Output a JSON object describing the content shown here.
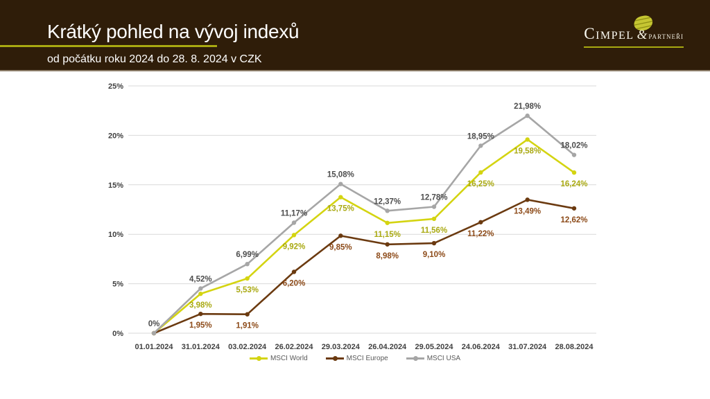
{
  "header": {
    "title": "Krátký pohled na vývoj indexů",
    "subtitle": "od počátku roku 2024 do 28. 8. 2024 v CZK",
    "background_color": "#2f1d09",
    "accent_color": "#a9a911",
    "text_color": "#ffffff",
    "logo": {
      "name": "Cimpel",
      "ampersand": "&",
      "suffix": "partneři"
    }
  },
  "chart_data": {
    "type": "line",
    "title": "",
    "x_labels": [
      "01.01.2024",
      "31.01.2024",
      "03.02.2024",
      "26.02.2024",
      "29.03.2024",
      "26.04.2024",
      "29.05.2024",
      "24.06.2024",
      "31.07.2024",
      "28.08.2024"
    ],
    "y_ticks": [
      "0%",
      "5%",
      "10%",
      "15%",
      "20%",
      "25%"
    ],
    "ylim": [
      0,
      25
    ],
    "grid": "horizontal",
    "gridline_color": "#d9d9d9",
    "axis_text_color": "#404040",
    "legend_position": "bottom",
    "legend_text_color": "#595959",
    "series": [
      {
        "name": "MSCI World",
        "color": "#d4d411",
        "label_color": "#a9a911",
        "label_side": "below",
        "values": [
          0,
          3.98,
          5.53,
          9.92,
          13.75,
          11.15,
          11.56,
          16.25,
          19.58,
          16.24
        ],
        "labels": [
          "",
          "3,98%",
          "5,53%",
          "9,92%",
          "13,75%",
          "11,15%",
          "11,56%",
          "16,25%",
          "19,58%",
          "16,24%"
        ]
      },
      {
        "name": "MSCI Europe",
        "color": "#6b3a10",
        "label_color": "#8c4a18",
        "label_side": "below",
        "values": [
          0,
          1.95,
          1.91,
          6.2,
          9.85,
          8.98,
          9.1,
          11.22,
          13.49,
          12.62
        ],
        "labels": [
          "",
          "1,95%",
          "1,91%",
          "6,20%",
          "9,85%",
          "8,98%",
          "9,10%",
          "11,22%",
          "13,49%",
          "12,62%"
        ]
      },
      {
        "name": "MSCI USA",
        "color": "#a6a6a6",
        "label_color": "#4d4d4d",
        "label_side": "above",
        "values": [
          0,
          4.52,
          6.99,
          11.17,
          15.08,
          12.37,
          12.78,
          18.95,
          21.98,
          18.02
        ],
        "labels": [
          "0%",
          "4,52%",
          "6,99%",
          "11,17%",
          "15,08%",
          "12,37%",
          "12,78%",
          "18,95%",
          "21,98%",
          "18,02%"
        ]
      }
    ]
  }
}
